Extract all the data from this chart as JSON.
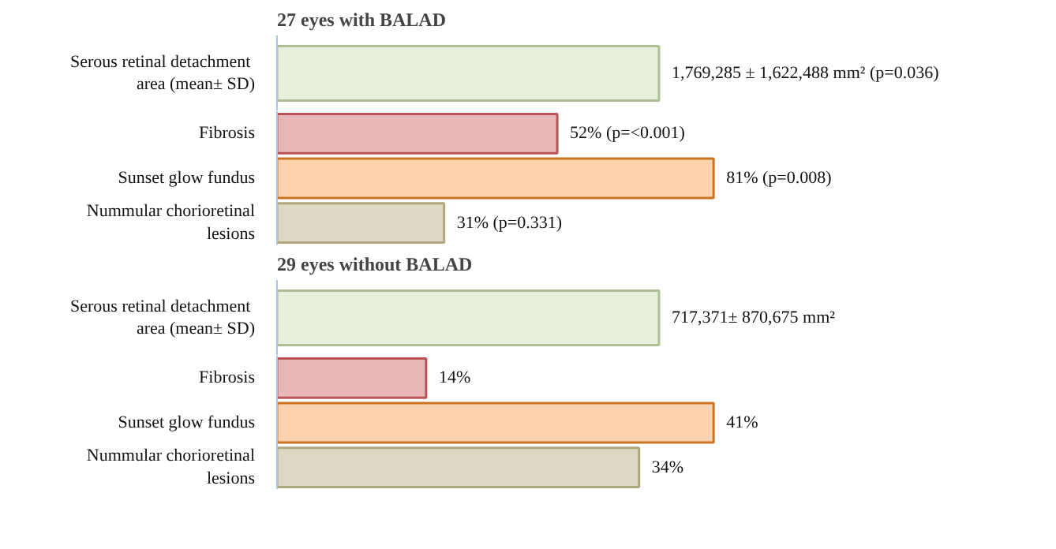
{
  "chart_data": [
    {
      "type": "bar",
      "orientation": "horizontal",
      "title": "27 eyes with BALAD",
      "categories": [
        "Serous retinal detachment  area (mean± SD)"
      ],
      "values": [
        1769285
      ],
      "colors": [
        "#e8f1dc"
      ],
      "value_labels": [
        "1,769,285 ± 1,622,488 mm² (p=0.036)"
      ]
    },
    {
      "type": "bar",
      "orientation": "horizontal",
      "categories": [
        "Fibrosis",
        "Sunset glow fundus",
        "Nummular chorioretinal lesions"
      ],
      "values": [
        52,
        81,
        31
      ],
      "colors": [
        "#e8b7b8",
        "#fcd3ac",
        "#dcd8c4"
      ],
      "value_labels": [
        "52% (p=<0.001)",
        "81% (p=0.008)",
        "31% (p=0.331)"
      ]
    },
    {
      "type": "bar",
      "orientation": "horizontal",
      "title": "29 eyes without BALAD",
      "categories": [
        "Serous retinal detachment  area (mean± SD)"
      ],
      "values": [
        717371
      ],
      "colors": [
        "#e8f1dc"
      ],
      "value_labels": [
        "717,371± 870,675 mm²"
      ]
    },
    {
      "type": "bar",
      "orientation": "horizontal",
      "categories": [
        "Fibrosis",
        "Sunset glow fundus",
        "Nummular chorioretinal lesions"
      ],
      "values": [
        14,
        41,
        34
      ],
      "colors": [
        "#e8b7b8",
        "#fcd3ac",
        "#dcd8c4"
      ],
      "value_labels": [
        "14%",
        "41%",
        "34%"
      ]
    }
  ]
}
